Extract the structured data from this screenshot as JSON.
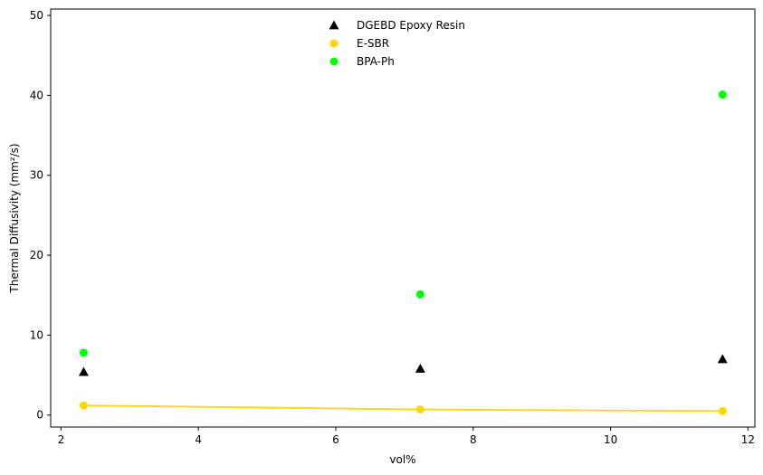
{
  "chart_data": {
    "type": "scatter",
    "xlabel": "vol%",
    "ylabel": "Thermal Diffusivity (mm²/s)",
    "xlim": [
      1.85,
      12.1
    ],
    "ylim": [
      -1.5,
      50.8
    ],
    "xticks": [
      2,
      4,
      6,
      8,
      10,
      12
    ],
    "yticks": [
      0,
      10,
      20,
      30,
      40,
      50
    ],
    "grid": false,
    "legend_position": "top-center",
    "series": [
      {
        "name": "DGEBD Epoxy Resin",
        "marker": "triangle",
        "color": "#000000",
        "line": false,
        "x": [
          2.33,
          7.23,
          11.63
        ],
        "y": [
          5.4,
          5.8,
          7.0
        ]
      },
      {
        "name": "E-SBR",
        "marker": "circle",
        "color": "#FFD700",
        "line": true,
        "x": [
          2.33,
          7.23,
          11.63
        ],
        "y": [
          1.2,
          0.7,
          0.5
        ]
      },
      {
        "name": "BPA-Ph",
        "marker": "circle",
        "color": "#00FF00",
        "line": false,
        "x": [
          2.33,
          7.23,
          11.63
        ],
        "y": [
          7.8,
          15.1,
          40.1
        ]
      }
    ]
  }
}
